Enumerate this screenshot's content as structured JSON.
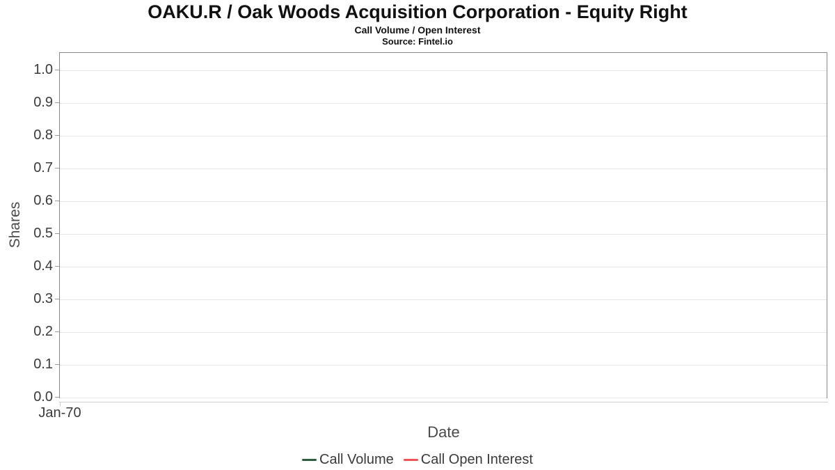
{
  "chart_data": {
    "type": "line",
    "title": "OAKU.R / Oak Woods Acquisition Corporation - Equity Right",
    "subtitle": "Call Volume / Open Interest",
    "source": "Source: Fintel.io",
    "xlabel": "Date",
    "ylabel": "Shares",
    "x_ticks": [
      "Jan-70"
    ],
    "y_ticks": [
      "1.0",
      "0.9",
      "0.8",
      "0.7",
      "0.6",
      "0.5",
      "0.4",
      "0.3",
      "0.2",
      "0.1",
      "0.0"
    ],
    "ylim": [
      0.0,
      1.05
    ],
    "grid": "horizontal",
    "legend_position": "bottom-center",
    "series": [
      {
        "name": "Call Volume",
        "color": "#2d5c3e",
        "values": []
      },
      {
        "name": "Call Open Interest",
        "color": "#ee5355",
        "values": []
      }
    ]
  }
}
